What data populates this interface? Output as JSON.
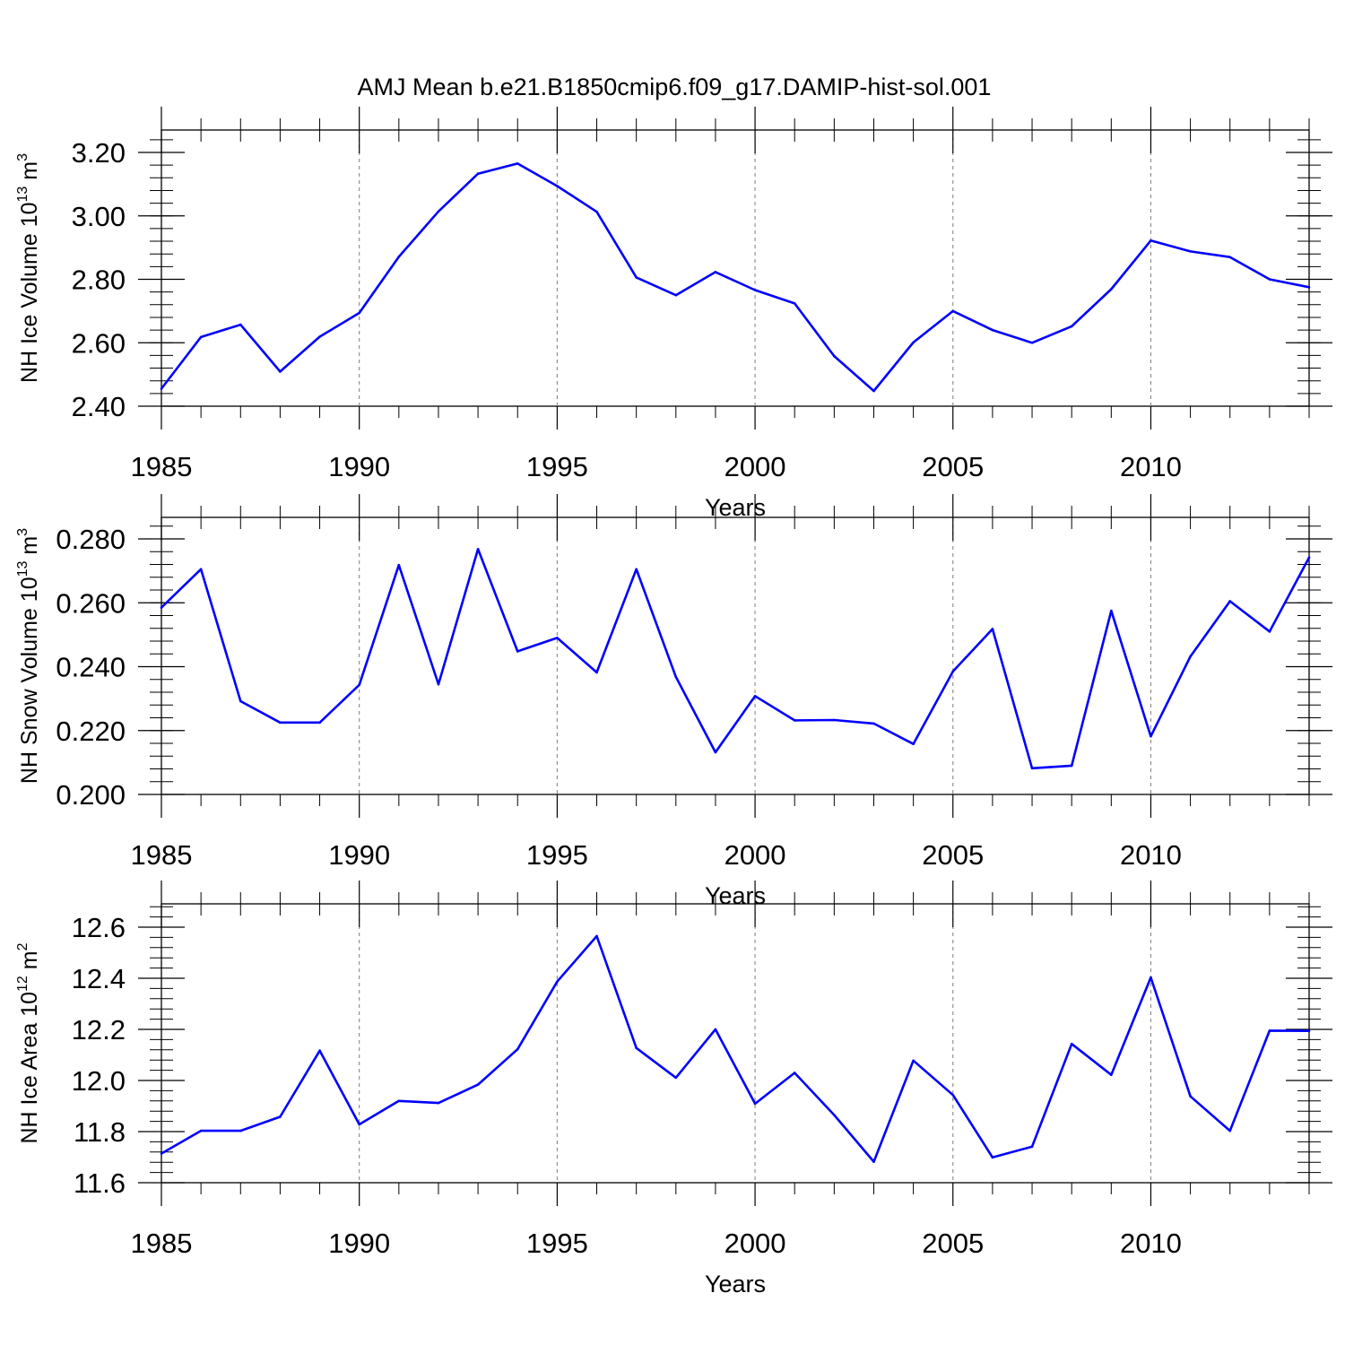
{
  "title": "AMJ Mean b.e21.B1850cmip6.f09_g17.DAMIP-hist-sol.001",
  "colors": {
    "line": "#0000ff",
    "axis": "#000000",
    "grid": "#888888"
  },
  "chart_data": [
    {
      "type": "line",
      "ylabel": {
        "main": "NH Ice Volume 10",
        "exp": "13",
        "unit": " m",
        "unit_exp": "3"
      },
      "xlabel": "Years",
      "xlim": [
        1985,
        2014
      ],
      "ylim": [
        2.4,
        3.275
      ],
      "x_ticks": [
        "1985",
        "1990",
        "1995",
        "2000",
        "2005",
        "2010"
      ],
      "y_ticks": [
        "2.40",
        "2.60",
        "2.80",
        "3.00",
        "3.20"
      ],
      "x": [
        1985,
        1986,
        1987,
        1988,
        1989,
        1990,
        1991,
        1992,
        1993,
        1994,
        1995,
        1996,
        1997,
        1998,
        1999,
        2000,
        2001,
        2002,
        2003,
        2004,
        2005,
        2006,
        2007,
        2008,
        2009,
        2010,
        2011,
        2012,
        2013,
        2014
      ],
      "values": [
        2.455,
        2.618,
        2.657,
        2.509,
        2.619,
        2.694,
        2.871,
        3.014,
        3.133,
        3.165,
        3.094,
        3.013,
        2.806,
        2.75,
        2.823,
        2.766,
        2.724,
        2.558,
        2.448,
        2.601,
        2.7,
        2.64,
        2.6,
        2.652,
        2.769,
        2.922,
        2.888,
        2.87,
        2.8,
        2.775
      ]
    },
    {
      "type": "line",
      "ylabel": {
        "main": "NH Snow Volume 10",
        "exp": "13",
        "unit": " m",
        "unit_exp": "3"
      },
      "xlabel": "Years",
      "xlim": [
        1985,
        2014
      ],
      "ylim": [
        0.2,
        0.2875
      ],
      "x_ticks": [
        "1985",
        "1990",
        "1995",
        "2000",
        "2005",
        "2010"
      ],
      "y_ticks": [
        "0.200",
        "0.220",
        "0.240",
        "0.260",
        "0.280"
      ],
      "x": [
        1985,
        1986,
        1987,
        1988,
        1989,
        1990,
        1991,
        1992,
        1993,
        1994,
        1995,
        1996,
        1997,
        1998,
        1999,
        2000,
        2001,
        2002,
        2003,
        2004,
        2005,
        2006,
        2007,
        2008,
        2009,
        2010,
        2011,
        2012,
        2013,
        2014
      ],
      "values": [
        0.2585,
        0.2705,
        0.2292,
        0.2225,
        0.2225,
        0.2343,
        0.2718,
        0.2345,
        0.2768,
        0.2448,
        0.249,
        0.2382,
        0.2705,
        0.2368,
        0.2132,
        0.2308,
        0.2232,
        0.2233,
        0.2222,
        0.2158,
        0.2385,
        0.2518,
        0.2082,
        0.209,
        0.2575,
        0.2182,
        0.2432,
        0.2605,
        0.251,
        0.2742
      ]
    },
    {
      "type": "line",
      "ylabel": {
        "main": "NH Ice Area 10",
        "exp": "12",
        "unit": " m",
        "unit_exp": "2"
      },
      "xlabel": "Years",
      "xlim": [
        1985,
        2014
      ],
      "ylim": [
        11.6,
        12.69
      ],
      "x_ticks": [
        "1985",
        "1990",
        "1995",
        "2000",
        "2005",
        "2010"
      ],
      "y_ticks": [
        "11.6",
        "11.8",
        "12.0",
        "12.2",
        "12.4",
        "12.6"
      ],
      "x": [
        1985,
        1986,
        1987,
        1988,
        1989,
        1990,
        1991,
        1992,
        1993,
        1994,
        1995,
        1996,
        1997,
        1998,
        1999,
        2000,
        2001,
        2002,
        2003,
        2004,
        2005,
        2006,
        2007,
        2008,
        2009,
        2010,
        2011,
        2012,
        2013,
        2014
      ],
      "values": [
        11.714,
        11.803,
        11.803,
        11.858,
        12.117,
        11.828,
        11.92,
        11.912,
        11.984,
        12.122,
        12.387,
        12.565,
        12.127,
        12.011,
        12.2,
        11.909,
        12.03,
        11.865,
        11.682,
        12.078,
        11.943,
        11.699,
        11.741,
        12.143,
        12.022,
        12.403,
        11.938,
        11.803,
        12.195,
        12.194
      ]
    }
  ]
}
